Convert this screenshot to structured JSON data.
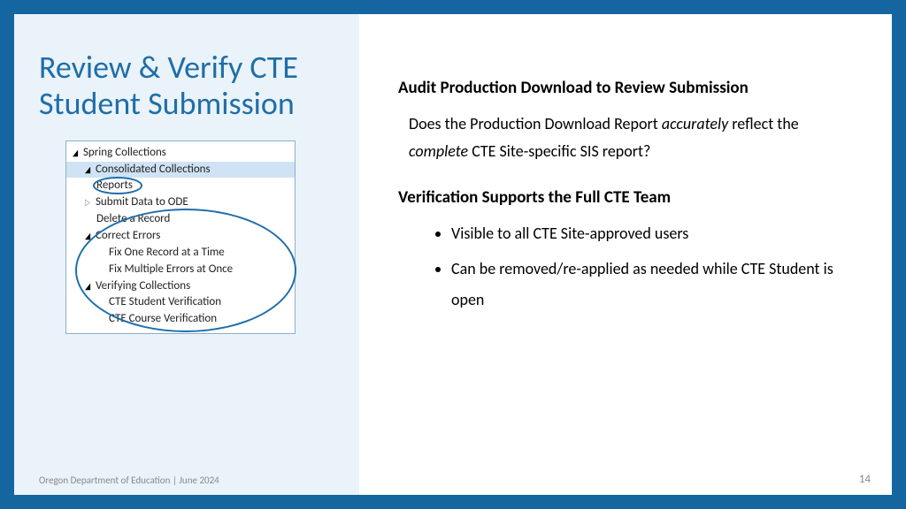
{
  "colors": {
    "border": "#1565a0",
    "leftPanelBg": "#eaf3fa",
    "titleColor": "#1f6ea8",
    "treeBorder": "#8faecc",
    "highlightBg": "#cfe3f5",
    "textColor": "#000000",
    "footerColor": "#888888"
  },
  "title": "Review & Verify CTE Student Submission",
  "tree": {
    "root": "Spring Collections",
    "consolidated": "Consolidated Collections",
    "reports": "Reports",
    "submit": "Submit Data to ODE",
    "delete": "Delete a Record",
    "correct": "Correct Errors",
    "fixOne": "Fix One Record at a Time",
    "fixMultiple": "Fix Multiple Errors at Once",
    "verifying": "Verifying Collections",
    "cteStudent": "CTE Student Verification",
    "cteCourse": "CTE Course Verification"
  },
  "content": {
    "heading1": "Audit Production Download to Review Submission",
    "body1_pre": "Does the Production Download Report ",
    "body1_em1": "accurately",
    "body1_mid": " reflect the ",
    "body1_em2": "complete",
    "body1_post": " CTE Site-specific SIS report?",
    "heading2": "Verification Supports the Full CTE Team",
    "bullets": [
      "Visible to all CTE Site-approved users",
      "Can be removed/re-applied as needed while CTE Student is open"
    ]
  },
  "footer": {
    "left": "Oregon Department of Education | June 2024",
    "pageNum": "14"
  }
}
